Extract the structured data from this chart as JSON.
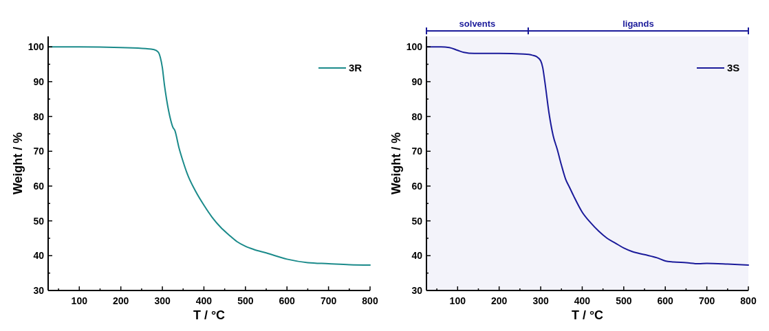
{
  "chart_data": [
    {
      "type": "line",
      "xlabel": "T / °C",
      "ylabel": "Weight / %",
      "xlim": [
        25,
        800
      ],
      "ylim": [
        30,
        103
      ],
      "xticks": [
        {
          "value": 50,
          "label": null
        },
        100,
        {
          "value": 150,
          "label": null
        },
        200,
        {
          "value": 250,
          "label": null
        },
        300,
        {
          "value": 350,
          "label": null
        },
        400,
        {
          "value": 450,
          "label": null
        },
        500,
        {
          "value": 550,
          "label": null
        },
        600,
        {
          "value": 650,
          "label": null
        },
        700,
        {
          "value": 750,
          "label": null
        },
        800
      ],
      "yticks": [
        30,
        {
          "value": 35,
          "label": null
        },
        40,
        {
          "value": 45,
          "label": null
        },
        50,
        {
          "value": 55,
          "label": null
        },
        60,
        {
          "value": 65,
          "label": null
        },
        70,
        {
          "value": 75,
          "label": null
        },
        80,
        {
          "value": 85,
          "label": null
        },
        90,
        {
          "value": 95,
          "label": null
        },
        100
      ],
      "grid": false,
      "legend": "top right",
      "series": [
        {
          "name": "3R",
          "color": "#1a8a8a",
          "x": [
            25,
            100,
            200,
            260,
            280,
            290,
            295,
            300,
            305,
            310,
            320,
            325,
            330,
            340,
            350,
            360,
            380,
            400,
            420,
            440,
            460,
            480,
            500,
            520,
            550,
            600,
            650,
            700,
            750,
            800
          ],
          "values": [
            100,
            100,
            99.8,
            99.5,
            99.2,
            98.5,
            97,
            94,
            89,
            85,
            79,
            77,
            76,
            71,
            67,
            63.5,
            58.5,
            54.5,
            51,
            48.2,
            46,
            44,
            42.7,
            41.8,
            40.8,
            39,
            38,
            37.7,
            37.4,
            37.3
          ]
        }
      ]
    },
    {
      "type": "line",
      "xlabel": "T / °C",
      "ylabel": "Weight / %",
      "xlim": [
        25,
        800
      ],
      "ylim": [
        30,
        103
      ],
      "xticks": [
        {
          "value": 50,
          "label": null
        },
        100,
        {
          "value": 150,
          "label": null
        },
        200,
        {
          "value": 250,
          "label": null
        },
        300,
        {
          "value": 350,
          "label": null
        },
        400,
        {
          "value": 450,
          "label": null
        },
        500,
        {
          "value": 550,
          "label": null
        },
        600,
        {
          "value": 650,
          "label": null
        },
        700,
        {
          "value": 750,
          "label": null
        },
        800
      ],
      "yticks": [
        30,
        {
          "value": 35,
          "label": null
        },
        40,
        {
          "value": 45,
          "label": null
        },
        50,
        {
          "value": 55,
          "label": null
        },
        60,
        {
          "value": 65,
          "label": null
        },
        70,
        {
          "value": 75,
          "label": null
        },
        80,
        {
          "value": 85,
          "label": null
        },
        90,
        {
          "value": 95,
          "label": null
        },
        100
      ],
      "grid": false,
      "legend": "top right",
      "bands": [
        {
          "axis": "x",
          "from": 25,
          "to": 270,
          "label": "solvents",
          "color": "#1a1a9a"
        },
        {
          "axis": "x",
          "from": 270,
          "to": 800,
          "label": "ligands",
          "color": "#1a1a9a"
        }
      ],
      "series": [
        {
          "name": "3S",
          "color": "#1a1a9a",
          "x": [
            25,
            60,
            80,
            100,
            115,
            140,
            200,
            260,
            280,
            290,
            300,
            305,
            310,
            320,
            330,
            340,
            350,
            360,
            370,
            380,
            400,
            420,
            440,
            460,
            480,
            500,
            520,
            550,
            580,
            600,
            620,
            650,
            680,
            700,
            750,
            800
          ],
          "values": [
            100,
            100,
            99.8,
            99,
            98.4,
            98.1,
            98.1,
            97.9,
            97.6,
            97.2,
            96,
            94,
            90,
            81,
            74.5,
            70.5,
            66,
            62,
            59.5,
            57,
            52.5,
            49.5,
            47,
            45,
            43.6,
            42.2,
            41.2,
            40.3,
            39.4,
            38.5,
            38.2,
            38,
            37.7,
            37.8,
            37.6,
            37.3
          ]
        }
      ]
    }
  ]
}
